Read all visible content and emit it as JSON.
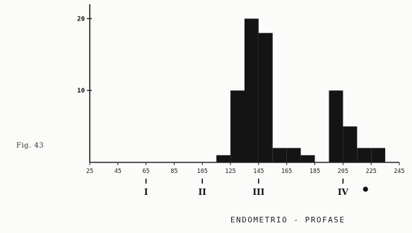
{
  "figure_label": "Fig. 43",
  "caption": "ENDOMETRIO - PROFASE",
  "chart_data": {
    "type": "bar",
    "title": "",
    "xlabel": "",
    "ylabel": "",
    "x_tick_labels": [
      "25",
      "45",
      "65",
      "85",
      "105",
      "125",
      "145",
      "165",
      "185",
      "205",
      "225",
      "245"
    ],
    "y_ticks": [
      10,
      20
    ],
    "xlim": [
      25,
      245
    ],
    "ylim": [
      0,
      22
    ],
    "bin_width": 10,
    "bins": [
      {
        "start": 25,
        "value": 0
      },
      {
        "start": 35,
        "value": 0
      },
      {
        "start": 45,
        "value": 0
      },
      {
        "start": 55,
        "value": 0
      },
      {
        "start": 65,
        "value": 0
      },
      {
        "start": 75,
        "value": 0
      },
      {
        "start": 85,
        "value": 0
      },
      {
        "start": 95,
        "value": 0
      },
      {
        "start": 105,
        "value": 0
      },
      {
        "start": 115,
        "value": 1
      },
      {
        "start": 125,
        "value": 10
      },
      {
        "start": 135,
        "value": 20
      },
      {
        "start": 145,
        "value": 18
      },
      {
        "start": 155,
        "value": 2
      },
      {
        "start": 165,
        "value": 2
      },
      {
        "start": 175,
        "value": 1
      },
      {
        "start": 185,
        "value": 0
      },
      {
        "start": 195,
        "value": 10
      },
      {
        "start": 205,
        "value": 5
      },
      {
        "start": 215,
        "value": 2
      },
      {
        "start": 225,
        "value": 2
      },
      {
        "start": 235,
        "value": 0
      }
    ],
    "markers": [
      {
        "x": 65,
        "label": "I",
        "symbol": "dash"
      },
      {
        "x": 105,
        "label": "II",
        "symbol": "dash"
      },
      {
        "x": 145,
        "label": "III",
        "symbol": "dash"
      },
      {
        "x": 205,
        "label": "IV",
        "symbol": "dash"
      },
      {
        "x": 221,
        "label": "",
        "symbol": "dot"
      }
    ],
    "colors": {
      "bar": "#141414",
      "axis": "#222222"
    }
  }
}
